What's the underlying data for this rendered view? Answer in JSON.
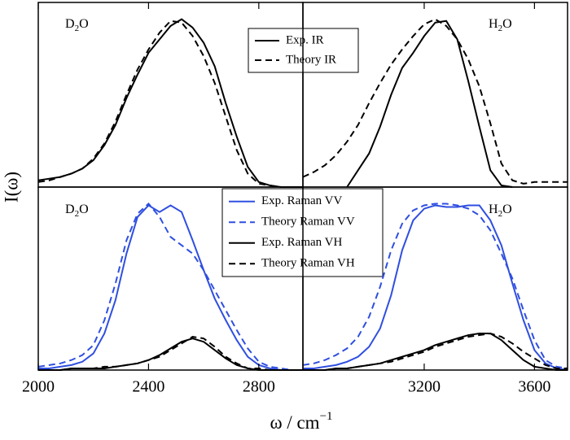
{
  "xlabel": {
    "text": "ω / cm",
    "superscript": "−1"
  },
  "ylabel": "I(ω)",
  "chart_data": [
    {
      "type": "line",
      "annotation": {
        "base": "D",
        "sub": "2",
        "rest": "O"
      },
      "x": [
        2000,
        2040,
        2080,
        2120,
        2160,
        2200,
        2240,
        2280,
        2320,
        2360,
        2400,
        2440,
        2480,
        2520,
        2560,
        2600,
        2640,
        2680,
        2720,
        2760,
        2800,
        2840,
        2880,
        2920,
        2960
      ],
      "xlim": [
        2000,
        2960
      ],
      "xticks": [
        2000,
        2400,
        2800
      ],
      "ylim": [
        0,
        1.1
      ],
      "series": [
        {
          "name": "Exp. IR",
          "color": "#000000",
          "dashed": false,
          "values": [
            0.04,
            0.05,
            0.06,
            0.08,
            0.11,
            0.16,
            0.25,
            0.37,
            0.53,
            0.67,
            0.8,
            0.88,
            0.96,
            1.0,
            0.95,
            0.86,
            0.72,
            0.5,
            0.3,
            0.12,
            0.03,
            0.01,
            0,
            0,
            0
          ]
        },
        {
          "name": "Theory IR",
          "color": "#000000",
          "dashed": true,
          "values": [
            0.03,
            0.04,
            0.06,
            0.08,
            0.11,
            0.17,
            0.26,
            0.39,
            0.55,
            0.7,
            0.82,
            0.92,
            0.99,
            0.98,
            0.9,
            0.78,
            0.62,
            0.42,
            0.22,
            0.08,
            0.02,
            0.01,
            0,
            0,
            0
          ]
        }
      ]
    },
    {
      "type": "line",
      "annotation": {
        "base": "H",
        "sub": "2",
        "rest": "O"
      },
      "x": [
        2760,
        2800,
        2840,
        2880,
        2920,
        2960,
        3000,
        3040,
        3080,
        3120,
        3160,
        3200,
        3240,
        3280,
        3320,
        3360,
        3400,
        3440,
        3480,
        3520,
        3560,
        3600,
        3640,
        3680,
        3720
      ],
      "xlim": [
        2760,
        3720
      ],
      "xticks": [
        3200,
        3600
      ],
      "ylim": [
        0,
        1.1
      ],
      "series": [
        {
          "color": "#000000",
          "dashed": false,
          "values": [
            null,
            null,
            null,
            null,
            0.0,
            0.1,
            0.2,
            0.36,
            0.55,
            0.71,
            0.8,
            0.9,
            0.98,
            0.99,
            0.88,
            0.63,
            0.36,
            0.1,
            0.01,
            0,
            null,
            null,
            null,
            null,
            null
          ]
        },
        {
          "color": "#000000",
          "dashed": true,
          "values": [
            0.06,
            0.09,
            0.13,
            0.19,
            0.27,
            0.37,
            0.5,
            0.62,
            0.73,
            0.82,
            0.9,
            0.97,
            1.0,
            0.96,
            0.88,
            0.76,
            0.6,
            0.38,
            0.14,
            0.04,
            0.02,
            0.03,
            0.03,
            0.03,
            0.03
          ]
        }
      ]
    },
    {
      "type": "line",
      "annotation": {
        "base": "D",
        "sub": "2",
        "rest": "O"
      },
      "x": [
        2000,
        2040,
        2080,
        2120,
        2160,
        2200,
        2240,
        2280,
        2320,
        2360,
        2400,
        2440,
        2480,
        2520,
        2560,
        2600,
        2640,
        2680,
        2720,
        2760,
        2800,
        2840,
        2880,
        2920,
        2960
      ],
      "xlim": [
        2000,
        2960
      ],
      "xticks": [
        2000,
        2400,
        2800
      ],
      "ylim": [
        0,
        1.1
      ],
      "series": [
        {
          "name": "Exp. Raman VV",
          "color": "#2f4fe0",
          "dashed": false,
          "values": [
            0.01,
            0.01,
            0.02,
            0.03,
            0.05,
            0.1,
            0.22,
            0.42,
            0.7,
            0.92,
            0.99,
            0.95,
            0.99,
            0.95,
            0.78,
            0.6,
            0.43,
            0.3,
            0.18,
            0.08,
            0.03,
            0.01,
            0,
            0,
            0
          ]
        },
        {
          "name": "Theory Raman VV",
          "color": "#2f4fe0",
          "dashed": true,
          "values": [
            0.02,
            0.03,
            0.04,
            0.06,
            0.09,
            0.15,
            0.3,
            0.52,
            0.78,
            0.94,
            1.0,
            0.92,
            0.8,
            0.75,
            0.7,
            0.6,
            0.48,
            0.36,
            0.24,
            0.13,
            0.05,
            0.02,
            0.01,
            0,
            0
          ]
        },
        {
          "name": "Exp. Raman VH",
          "color": "#000000",
          "dashed": false,
          "values": [
            0,
            0,
            0,
            0.01,
            0.01,
            0.01,
            0.01,
            0.02,
            0.03,
            0.04,
            0.06,
            0.09,
            0.13,
            0.17,
            0.19,
            0.17,
            0.12,
            0.07,
            0.03,
            0.01,
            0,
            0,
            0,
            0,
            0
          ]
        },
        {
          "name": "Theory Raman VH",
          "color": "#000000",
          "dashed": true,
          "values": [
            0,
            0,
            0,
            0.01,
            0.01,
            0.01,
            0.02,
            0.02,
            0.03,
            0.04,
            0.06,
            0.08,
            0.12,
            0.16,
            0.2,
            0.19,
            0.14,
            0.08,
            0.04,
            0.01,
            0.01,
            0,
            0,
            0,
            0
          ]
        }
      ]
    },
    {
      "type": "line",
      "annotation": {
        "base": "H",
        "sub": "2",
        "rest": "O"
      },
      "x": [
        2760,
        2800,
        2840,
        2880,
        2920,
        2960,
        3000,
        3040,
        3080,
        3120,
        3160,
        3200,
        3240,
        3280,
        3320,
        3360,
        3400,
        3440,
        3480,
        3520,
        3560,
        3600,
        3640,
        3680,
        3720
      ],
      "xlim": [
        2760,
        3720
      ],
      "xticks": [
        3200,
        3600
      ],
      "ylim": [
        0,
        1.1
      ],
      "series": [
        {
          "color": "#2f4fe0",
          "dashed": false,
          "values": [
            0.01,
            0.01,
            0.02,
            0.03,
            0.05,
            0.08,
            0.14,
            0.25,
            0.45,
            0.72,
            0.9,
            0.97,
            0.99,
            0.98,
            0.98,
            0.99,
            0.99,
            0.9,
            0.75,
            0.52,
            0.3,
            0.12,
            0.04,
            0.01,
            0
          ]
        },
        {
          "color": "#2f4fe0",
          "dashed": true,
          "values": [
            0.03,
            0.04,
            0.06,
            0.09,
            0.13,
            0.2,
            0.32,
            0.5,
            0.72,
            0.88,
            0.96,
            0.99,
            1.0,
            1.0,
            0.99,
            0.97,
            0.93,
            0.84,
            0.7,
            0.55,
            0.36,
            0.18,
            0.06,
            0.02,
            0.01
          ]
        },
        {
          "color": "#000000",
          "dashed": false,
          "values": [
            0,
            0,
            0,
            0.01,
            0.01,
            0.02,
            0.03,
            0.04,
            0.06,
            0.08,
            0.1,
            0.12,
            0.15,
            0.17,
            0.19,
            0.21,
            0.22,
            0.22,
            0.18,
            0.12,
            0.06,
            0.02,
            0.01,
            0,
            0
          ]
        },
        {
          "color": "#000000",
          "dashed": true,
          "values": [
            0,
            0,
            0,
            0.01,
            0.01,
            0.02,
            0.03,
            0.04,
            0.05,
            0.07,
            0.09,
            0.11,
            0.14,
            0.16,
            0.18,
            0.2,
            0.21,
            0.22,
            0.2,
            0.16,
            0.11,
            0.07,
            0.03,
            0.01,
            0.01
          ]
        }
      ]
    }
  ]
}
